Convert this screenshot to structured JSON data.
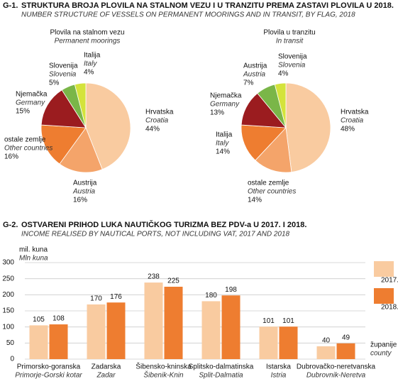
{
  "figure1": {
    "label": "G-1.",
    "title": "STRUKTURA BROJA PLOVILA NA STALNOM VEZU I U TRANZITU PREMA ZASTAVI PLOVILA U 2018.",
    "subtitle": "NUMBER STRUCTURE OF VESSELS ON PERMANENT MOORINGS AND IN TRANSIT, BY FLAG, 2018"
  },
  "figure2": {
    "label": "G-2.",
    "title": "OSTVARENI PRIHOD LUKA NAUTIČKOG TURIZMA BEZ PDV-a U 2017. I 2018.",
    "subtitle": "INCOME REALISED BY NAUTICAL PORTS, NOT INCLUDING VAT, 2017 AND 2018"
  },
  "chart_data": [
    {
      "type": "pie",
      "title": "Plovila na stalnom vezu",
      "subtitle": "Permanent moorings",
      "categories": [
        "Hrvatska",
        "Austrija",
        "ostale zemlje",
        "Njemačka",
        "Slovenija",
        "Italija"
      ],
      "categories_en": [
        "Croatia",
        "Austria",
        "Other countries",
        "Germany",
        "Slovenia",
        "Italy"
      ],
      "values": [
        44,
        16,
        16,
        15,
        5,
        4
      ],
      "value_labels": [
        "44%",
        "16%",
        "16%",
        "15%",
        "5%",
        "4%"
      ],
      "colors": [
        "#f9cba0",
        "#f4a46a",
        "#ee7d30",
        "#9b1c1f",
        "#7ab648",
        "#d4e33b"
      ]
    },
    {
      "type": "pie",
      "title": "Plovila u tranzitu",
      "subtitle": "In transit",
      "categories": [
        "Hrvatska",
        "ostale zemlje",
        "Italija",
        "Njemačka",
        "Austrija",
        "Slovenija"
      ],
      "categories_en": [
        "Croatia",
        "Other countries",
        "Italy",
        "Germany",
        "Austria",
        "Slovenia"
      ],
      "values": [
        48,
        14,
        14,
        13,
        7,
        4
      ],
      "value_labels": [
        "48%",
        "14%",
        "14%",
        "13%",
        "7%",
        "4%"
      ],
      "colors": [
        "#f9cba0",
        "#f4a46a",
        "#ee7d30",
        "#9b1c1f",
        "#7ab648",
        "#d4e33b"
      ]
    },
    {
      "type": "bar",
      "y_label": "mil. kuna",
      "y_label_en": "Mln kuna",
      "x_label": "županije",
      "x_label_en": "county",
      "categories": [
        "Primorsko-goranska",
        "Zadarska",
        "Šibensko-kninska",
        "Splitsko-dalmatinska",
        "Istarska",
        "Dubrovačko-neretvanska"
      ],
      "categories_en": [
        "Primorje-Gorski kotar",
        "Zadar",
        "Šibenik-Knin",
        "Split-Dalmatia",
        "Istria",
        "Dubrovnik-Neretva"
      ],
      "series": [
        {
          "name": "2017.",
          "color": "#f9cba0",
          "values": [
            105,
            170,
            238,
            180,
            101,
            40
          ]
        },
        {
          "name": "2018.",
          "color": "#ee7d30",
          "values": [
            108,
            176,
            225,
            198,
            101,
            49
          ]
        }
      ],
      "ylim": [
        0,
        300
      ],
      "yticks": [
        0,
        50,
        100,
        150,
        200,
        250,
        300
      ],
      "grid": true
    }
  ]
}
